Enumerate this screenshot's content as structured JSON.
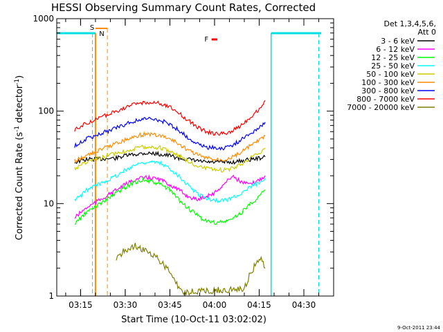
{
  "chart_data": {
    "type": "line",
    "title": "HESSI Observing Summary Count Rates, Corrected",
    "xlabel": "Start Time (10-Oct-11 03:02:02)",
    "ylabel": "Corrected Count Rate (s",
    "ylabel_sup1": "-1",
    "ylabel_mid": " detector",
    "ylabel_sup2": "-1",
    "ylabel_end": ")",
    "xlim": [
      "03:07",
      "04:40"
    ],
    "ylim": [
      1,
      1000
    ],
    "yscale": "log",
    "x_ticks": [
      "03:15",
      "03:30",
      "03:45",
      "04:00",
      "04:15",
      "04:30"
    ],
    "y_ticks": [
      {
        "value": 1,
        "label": "1"
      },
      {
        "value": 10,
        "label": "10"
      },
      {
        "value": 100,
        "label": "100"
      },
      {
        "value": 1000,
        "label": "1000"
      }
    ],
    "legend": {
      "placement": "right",
      "header_line1": "Det 1,3,4,5,6,",
      "header_line2": "Att 0"
    },
    "series": [
      {
        "name": "3 - 6 keV",
        "color": "#000000",
        "x": [
          "03:13",
          "03:15",
          "03:17",
          "03:27",
          "03:30",
          "03:33",
          "03:36",
          "03:39",
          "03:42",
          "03:45",
          "03:48",
          "03:51",
          "03:54",
          "03:57",
          "04:00",
          "04:03",
          "04:06",
          "04:09",
          "04:12",
          "04:15",
          "04:17"
        ],
        "y": [
          28,
          29,
          30,
          31,
          33,
          34,
          35,
          35,
          34,
          33,
          31,
          30,
          29,
          28,
          28,
          28,
          28,
          29,
          30,
          31,
          32
        ]
      },
      {
        "name": "6 - 12 keV",
        "color": "#ff00ff",
        "x": [
          "03:13",
          "03:15",
          "03:17",
          "03:27",
          "03:30",
          "03:33",
          "03:36",
          "03:39",
          "03:42",
          "03:45",
          "03:48",
          "03:51",
          "03:54",
          "03:57",
          "04:00",
          "04:03",
          "04:06",
          "04:09",
          "04:12",
          "04:15",
          "04:17"
        ],
        "y": [
          7,
          8,
          9,
          14,
          16,
          18,
          19,
          19,
          18,
          16,
          14,
          12,
          11,
          12,
          13,
          16,
          20,
          17,
          16,
          18,
          20
        ]
      },
      {
        "name": "12 - 25 keV",
        "color": "#00ff00",
        "x": [
          "03:13",
          "03:15",
          "03:17",
          "03:27",
          "03:30",
          "03:33",
          "03:36",
          "03:39",
          "03:42",
          "03:45",
          "03:48",
          "03:51",
          "03:54",
          "03:57",
          "04:00",
          "04:03",
          "04:06",
          "04:09",
          "04:12",
          "04:15",
          "04:17"
        ],
        "y": [
          6,
          7,
          8,
          13,
          15,
          17,
          18,
          17,
          16,
          14,
          11,
          9,
          7.5,
          6.5,
          6.2,
          6.3,
          6.8,
          8,
          10,
          12,
          14
        ]
      },
      {
        "name": "25 - 50 keV",
        "color": "#00ffff",
        "x": [
          "03:13",
          "03:15",
          "03:17",
          "03:27",
          "03:30",
          "03:33",
          "03:36",
          "03:39",
          "03:42",
          "03:45",
          "03:48",
          "03:51",
          "03:54",
          "03:57",
          "04:00",
          "04:03",
          "04:06",
          "04:09",
          "04:12",
          "04:15",
          "04:17"
        ],
        "y": [
          11,
          12,
          14,
          20,
          23,
          26,
          28,
          28,
          27,
          24,
          20,
          16,
          13,
          11.5,
          10.8,
          10.8,
          11.5,
          13,
          15,
          17,
          19
        ]
      },
      {
        "name": "50 - 100 keV",
        "color": "#cccc00",
        "x": [
          "03:13",
          "03:15",
          "03:17",
          "03:27",
          "03:30",
          "03:33",
          "03:36",
          "03:39",
          "03:42",
          "03:45",
          "03:48",
          "03:51",
          "03:54",
          "03:57",
          "04:00",
          "04:03",
          "04:06",
          "04:09",
          "04:12",
          "04:15",
          "04:17"
        ],
        "y": [
          24,
          26,
          28,
          35,
          37,
          39,
          41,
          41,
          40,
          37,
          33,
          29,
          26,
          24,
          23,
          23,
          24,
          27,
          31,
          35,
          40
        ]
      },
      {
        "name": "100 - 300 keV",
        "color": "#ff8c00",
        "x": [
          "03:13",
          "03:15",
          "03:17",
          "03:27",
          "03:30",
          "03:33",
          "03:36",
          "03:39",
          "03:42",
          "03:45",
          "03:48",
          "03:51",
          "03:54",
          "03:57",
          "04:00",
          "04:03",
          "04:06",
          "04:09",
          "04:12",
          "04:15",
          "04:17"
        ],
        "y": [
          29,
          31,
          33,
          45,
          49,
          53,
          56,
          56,
          54,
          50,
          44,
          38,
          34,
          31,
          30,
          30,
          32,
          36,
          42,
          48,
          54
        ]
      },
      {
        "name": "300 - 800 keV",
        "color": "#0000ff",
        "x": [
          "03:13",
          "03:15",
          "03:17",
          "03:27",
          "03:30",
          "03:33",
          "03:36",
          "03:39",
          "03:42",
          "03:45",
          "03:48",
          "03:51",
          "03:54",
          "03:57",
          "04:00",
          "04:03",
          "04:06",
          "04:09",
          "04:12",
          "04:15",
          "04:17"
        ],
        "y": [
          42,
          46,
          50,
          66,
          72,
          78,
          82,
          82,
          79,
          72,
          62,
          52,
          45,
          41,
          40,
          40,
          43,
          49,
          57,
          67,
          76
        ]
      },
      {
        "name": "800 - 7000 keV",
        "color": "#ff0000",
        "x": [
          "03:13",
          "03:15",
          "03:17",
          "03:27",
          "03:30",
          "03:33",
          "03:36",
          "03:39",
          "03:42",
          "03:45",
          "03:48",
          "03:51",
          "03:54",
          "03:57",
          "04:00",
          "04:03",
          "04:06",
          "04:09",
          "04:12",
          "04:15",
          "04:17"
        ],
        "y": [
          62,
          68,
          74,
          100,
          110,
          118,
          124,
          124,
          120,
          110,
          95,
          80,
          68,
          60,
          57,
          57,
          61,
          71,
          86,
          105,
          130
        ]
      },
      {
        "name": "7000 - 20000 keV",
        "color": "#808000",
        "x": [
          "03:27",
          "03:29",
          "03:31",
          "03:33",
          "03:35",
          "03:37",
          "03:39",
          "03:41",
          "03:43",
          "03:45",
          "03:47",
          "03:49",
          "04:10",
          "04:12",
          "04:14",
          "04:16",
          "04:17"
        ],
        "y": [
          2.5,
          3.0,
          3.2,
          3.5,
          3.3,
          3.0,
          2.8,
          2.5,
          2.2,
          1.8,
          1.4,
          1.1,
          1.2,
          1.8,
          2.2,
          2.5,
          2.0
        ]
      }
    ],
    "annotations": [
      {
        "text": "S",
        "color": "#ff8c00"
      },
      {
        "text": "N",
        "color": "#00cccc"
      },
      {
        "text": "F",
        "color": "#ff0000"
      }
    ]
  },
  "footer": {
    "timestamp": "9-Oct-2011 23:44"
  }
}
